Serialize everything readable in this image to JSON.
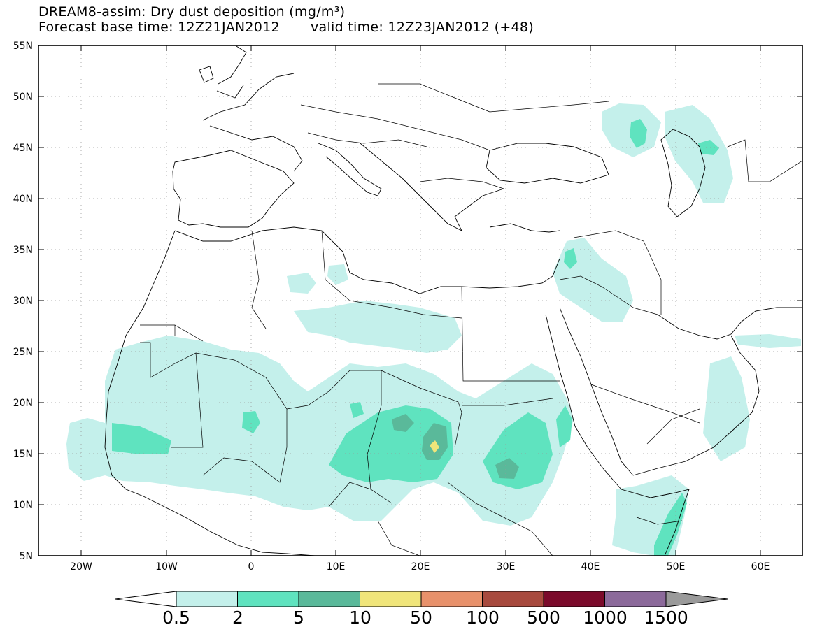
{
  "header": {
    "title": "DREAM8-assim: Dry dust deposition (mg/m³)",
    "base_time": "Forecast base time: 12Z21JAN2012",
    "valid_time": "valid time: 12Z23JAN2012 (+48)"
  },
  "map": {
    "lat_labels": [
      "55N",
      "50N",
      "45N",
      "40N",
      "35N",
      "30N",
      "25N",
      "20N",
      "15N",
      "10N",
      "5N"
    ],
    "lon_labels": [
      "20W",
      "10W",
      "0",
      "10E",
      "20E",
      "30E",
      "40E",
      "50E",
      "60E"
    ],
    "lat_range": [
      5,
      55
    ],
    "lon_range": [
      -25,
      65
    ]
  },
  "legend": {
    "bins": [
      {
        "color": "#c4f0eb"
      },
      {
        "color": "#5fe3bf"
      },
      {
        "color": "#5ab99a"
      },
      {
        "color": "#f0e57a"
      },
      {
        "color": "#e8916b"
      },
      {
        "color": "#a84a3e"
      },
      {
        "color": "#7b0a2b"
      },
      {
        "color": "#8c6a9b"
      }
    ],
    "low_color": "#ffffff",
    "high_color": "#9a9a9a",
    "labels": [
      "0.5",
      "2",
      "5",
      "10",
      "50",
      "100",
      "500",
      "1000",
      "1500"
    ]
  }
}
